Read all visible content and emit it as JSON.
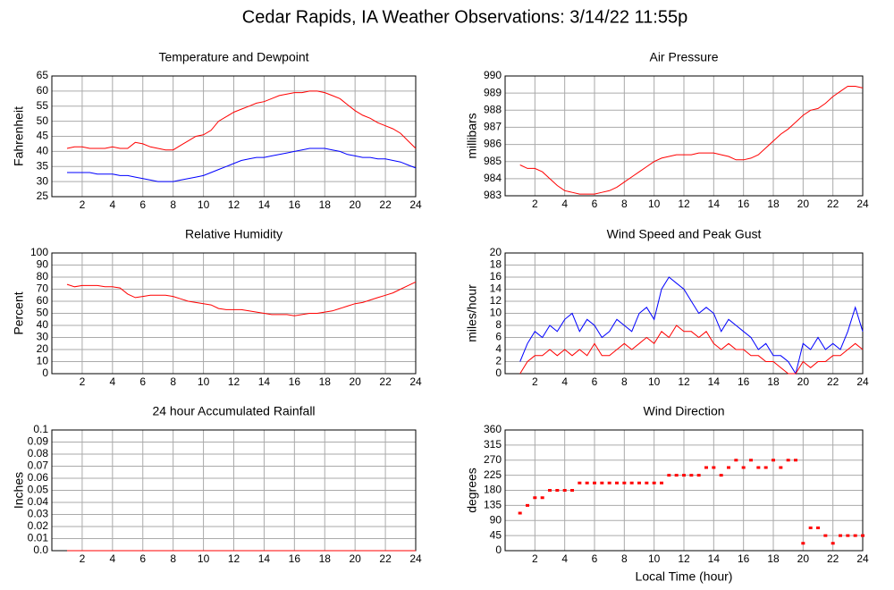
{
  "title": "Cedar Rapids, IA Weather Observations: 3/14/22 11:55p",
  "chart_data": [
    {
      "type": "line",
      "title": "Temperature and Dewpoint",
      "ylabel": "Fahrenheit",
      "x": [
        1,
        1.5,
        2,
        2.5,
        3,
        3.5,
        4,
        4.5,
        5,
        5.5,
        6,
        6.5,
        7,
        7.5,
        8,
        8.5,
        9,
        9.5,
        10,
        10.5,
        11,
        11.5,
        12,
        12.5,
        13,
        13.5,
        14,
        14.5,
        15,
        15.5,
        16,
        16.5,
        17,
        17.5,
        18,
        18.5,
        19,
        19.5,
        20,
        20.5,
        21,
        21.5,
        22,
        22.5,
        23,
        23.5,
        24
      ],
      "series": [
        {
          "color": "#ff0000",
          "values": [
            41,
            41.5,
            41.5,
            41,
            41,
            41,
            41.5,
            41,
            41,
            43,
            42.5,
            41.5,
            41,
            40.5,
            40.5,
            42,
            43.5,
            45,
            45.5,
            47,
            50,
            51.5,
            53,
            54,
            55,
            56,
            56.5,
            57.5,
            58.5,
            59,
            59.5,
            59.5,
            60,
            60,
            59.5,
            58.5,
            57.5,
            55.5,
            53.5,
            52,
            51,
            49.5,
            48.5,
            47.5,
            46,
            43.5,
            41
          ]
        },
        {
          "color": "#0000ff",
          "values": [
            33,
            33,
            33,
            33,
            32.5,
            32.5,
            32.5,
            32,
            32,
            31.5,
            31,
            30.5,
            30,
            30,
            30,
            30.5,
            31,
            31.5,
            32,
            33,
            34,
            35,
            36,
            37,
            37.5,
            38,
            38,
            38.5,
            39,
            39.5,
            40,
            40.5,
            41,
            41,
            41,
            40.5,
            40,
            39,
            38.5,
            38,
            38,
            37.5,
            37.5,
            37,
            36.5,
            35.5,
            34.5
          ]
        }
      ],
      "xlim": [
        0,
        24
      ],
      "xticks": [
        2,
        4,
        6,
        8,
        10,
        12,
        14,
        16,
        18,
        20,
        22,
        24
      ],
      "ylim": [
        25,
        65
      ],
      "yticks": [
        25,
        30,
        35,
        40,
        45,
        50,
        55,
        60,
        65
      ],
      "grid": true
    },
    {
      "type": "line",
      "title": "Air Pressure",
      "ylabel": "millibars",
      "x": [
        1,
        1.5,
        2,
        2.5,
        3,
        3.5,
        4,
        4.5,
        5,
        5.5,
        6,
        6.5,
        7,
        7.5,
        8,
        8.5,
        9,
        9.5,
        10,
        10.5,
        11,
        11.5,
        12,
        12.5,
        13,
        13.5,
        14,
        14.5,
        15,
        15.5,
        16,
        16.5,
        17,
        17.5,
        18,
        18.5,
        19,
        19.5,
        20,
        20.5,
        21,
        21.5,
        22,
        22.5,
        23,
        23.5,
        24
      ],
      "series": [
        {
          "color": "#ff0000",
          "values": [
            984.8,
            984.6,
            984.6,
            984.4,
            984.0,
            983.6,
            983.3,
            983.2,
            983.1,
            983.1,
            983.1,
            983.2,
            983.3,
            983.5,
            983.8,
            984.1,
            984.4,
            984.7,
            985.0,
            985.2,
            985.3,
            985.4,
            985.4,
            985.4,
            985.5,
            985.5,
            985.5,
            985.4,
            985.3,
            985.1,
            985.1,
            985.2,
            985.4,
            985.8,
            986.2,
            986.6,
            986.9,
            987.3,
            987.7,
            988.0,
            988.1,
            988.4,
            988.8,
            989.1,
            989.4,
            989.4,
            989.3
          ]
        }
      ],
      "xlim": [
        0,
        24
      ],
      "xticks": [
        2,
        4,
        6,
        8,
        10,
        12,
        14,
        16,
        18,
        20,
        22,
        24
      ],
      "ylim": [
        983,
        990
      ],
      "yticks": [
        983,
        984,
        985,
        986,
        987,
        988,
        989,
        990
      ],
      "grid": true
    },
    {
      "type": "line",
      "title": "Relative Humidity",
      "ylabel": "Percent",
      "x": [
        1,
        1.5,
        2,
        2.5,
        3,
        3.5,
        4,
        4.5,
        5,
        5.5,
        6,
        6.5,
        7,
        7.5,
        8,
        8.5,
        9,
        9.5,
        10,
        10.5,
        11,
        11.5,
        12,
        12.5,
        13,
        13.5,
        14,
        14.5,
        15,
        15.5,
        16,
        16.5,
        17,
        17.5,
        18,
        18.5,
        19,
        19.5,
        20,
        20.5,
        21,
        21.5,
        22,
        22.5,
        23,
        23.5,
        24
      ],
      "series": [
        {
          "color": "#ff0000",
          "values": [
            74,
            72,
            73,
            73,
            73,
            72,
            72,
            71,
            66,
            63,
            64,
            65,
            65,
            65,
            64,
            62,
            60,
            59,
            58,
            57,
            54,
            53,
            53,
            53,
            52,
            51,
            50,
            49,
            49,
            49,
            48,
            49,
            50,
            50,
            51,
            52,
            54,
            56,
            58,
            59,
            61,
            63,
            65,
            67,
            70,
            73,
            76
          ]
        }
      ],
      "xlim": [
        0,
        24
      ],
      "xticks": [
        2,
        4,
        6,
        8,
        10,
        12,
        14,
        16,
        18,
        20,
        22,
        24
      ],
      "ylim": [
        0,
        100
      ],
      "yticks": [
        0,
        10,
        20,
        30,
        40,
        50,
        60,
        70,
        80,
        90,
        100
      ],
      "grid": true
    },
    {
      "type": "line",
      "title": "Wind Speed and Peak Gust",
      "ylabel": "miles/hour",
      "x": [
        1,
        1.5,
        2,
        2.5,
        3,
        3.5,
        4,
        4.5,
        5,
        5.5,
        6,
        6.5,
        7,
        7.5,
        8,
        8.5,
        9,
        9.5,
        10,
        10.5,
        11,
        11.5,
        12,
        12.5,
        13,
        13.5,
        14,
        14.5,
        15,
        15.5,
        16,
        16.5,
        17,
        17.5,
        18,
        18.5,
        19,
        19.5,
        20,
        20.5,
        21,
        21.5,
        22,
        22.5,
        23,
        23.5,
        24
      ],
      "series": [
        {
          "color": "#0000ff",
          "values": [
            2,
            5,
            7,
            6,
            8,
            7,
            9,
            10,
            7,
            9,
            8,
            6,
            7,
            9,
            8,
            7,
            10,
            11,
            9,
            14,
            16,
            15,
            14,
            12,
            10,
            11,
            10,
            7,
            9,
            8,
            7,
            6,
            4,
            5,
            3,
            3,
            2,
            0,
            5,
            4,
            6,
            4,
            5,
            4,
            7,
            11,
            7
          ]
        },
        {
          "color": "#ff0000",
          "values": [
            0,
            2,
            3,
            3,
            4,
            3,
            4,
            3,
            4,
            3,
            5,
            3,
            3,
            4,
            5,
            4,
            5,
            6,
            5,
            7,
            6,
            8,
            7,
            7,
            6,
            7,
            5,
            4,
            5,
            4,
            4,
            3,
            3,
            2,
            2,
            1,
            0,
            0,
            2,
            1,
            2,
            2,
            3,
            3,
            4,
            5,
            4
          ]
        }
      ],
      "xlim": [
        0,
        24
      ],
      "xticks": [
        2,
        4,
        6,
        8,
        10,
        12,
        14,
        16,
        18,
        20,
        22,
        24
      ],
      "ylim": [
        0,
        20
      ],
      "yticks": [
        0,
        2,
        4,
        6,
        8,
        10,
        12,
        14,
        16,
        18,
        20
      ],
      "grid": true
    },
    {
      "type": "line",
      "title": "24 hour Accumulated Rainfall",
      "ylabel": "Inches",
      "x": [
        1,
        1.5,
        2,
        2.5,
        3,
        3.5,
        4,
        4.5,
        5,
        5.5,
        6,
        6.5,
        7,
        7.5,
        8,
        8.5,
        9,
        9.5,
        10,
        10.5,
        11,
        11.5,
        12,
        12.5,
        13,
        13.5,
        14,
        14.5,
        15,
        15.5,
        16,
        16.5,
        17,
        17.5,
        18,
        18.5,
        19,
        19.5,
        20,
        20.5,
        21,
        21.5,
        22,
        22.5,
        23,
        23.5,
        24
      ],
      "series": [
        {
          "color": "#ff0000",
          "values": [
            0,
            0,
            0,
            0,
            0,
            0,
            0,
            0,
            0,
            0,
            0,
            0,
            0,
            0,
            0,
            0,
            0,
            0,
            0,
            0,
            0,
            0,
            0,
            0,
            0,
            0,
            0,
            0,
            0,
            0,
            0,
            0,
            0,
            0,
            0,
            0,
            0,
            0,
            0,
            0,
            0,
            0,
            0,
            0,
            0,
            0,
            0
          ]
        }
      ],
      "xlim": [
        0,
        24
      ],
      "xticks": [
        2,
        4,
        6,
        8,
        10,
        12,
        14,
        16,
        18,
        20,
        22,
        24
      ],
      "ylim": [
        0,
        0.1
      ],
      "yticks": [
        {
          "value": 0,
          "label": "0.0"
        },
        0.01,
        0.02,
        0.03,
        0.04,
        0.05,
        0.06,
        0.07,
        0.08,
        0.09,
        0.1
      ],
      "grid": true
    },
    {
      "type": "scatter",
      "title": "Wind Direction",
      "ylabel": "degrees",
      "xlabel": "Local Time (hour)",
      "x": [
        1,
        1.5,
        2,
        2.5,
        3,
        3.5,
        4,
        4.5,
        5,
        5.5,
        6,
        6.5,
        7,
        7.5,
        8,
        8.5,
        9,
        9.5,
        10,
        10.5,
        11,
        11.5,
        12,
        12.5,
        13,
        13.5,
        14,
        14.5,
        15,
        15.5,
        16,
        16.5,
        17,
        17.5,
        18,
        18.5,
        19,
        19.5,
        20,
        20.5,
        21,
        21.5,
        22,
        22.5,
        23,
        23.5,
        24
      ],
      "series": [
        {
          "color": "#ff0000",
          "values": [
            112,
            135,
            158,
            158,
            180,
            180,
            180,
            180,
            202,
            202,
            202,
            202,
            202,
            202,
            202,
            202,
            202,
            202,
            202,
            202,
            225,
            225,
            225,
            225,
            225,
            248,
            248,
            225,
            248,
            270,
            248,
            270,
            248,
            248,
            270,
            248,
            270,
            270,
            22,
            68,
            68,
            45,
            22,
            45,
            45,
            45,
            45
          ]
        }
      ],
      "xlim": [
        0,
        24
      ],
      "xticks": [
        2,
        4,
        6,
        8,
        10,
        12,
        14,
        16,
        18,
        20,
        22,
        24
      ],
      "ylim": [
        0,
        360
      ],
      "yticks": [
        0,
        45,
        90,
        135,
        180,
        225,
        270,
        315,
        360
      ],
      "grid": true
    }
  ]
}
